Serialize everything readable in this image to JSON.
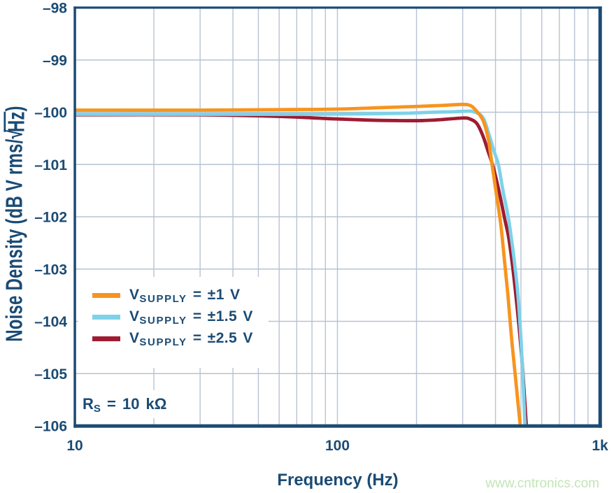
{
  "watermark": {
    "text": "www.cntronics.com"
  },
  "colors": {
    "axis": "#1b4b74",
    "grid": "#b7c3d3",
    "plot_border": "#1b4b74",
    "watermark": "#c2e5b6"
  },
  "chart_data": {
    "type": "line",
    "title": "",
    "xlabel": "Frequency (Hz)",
    "ylabel": "Noise Density (dB V rms/√Hz)",
    "ylabel_parts": {
      "pre": "Noise Density (dB V rms/",
      "radical": "√",
      "root": "Hz",
      "post": ")"
    },
    "x_scale": "log",
    "xlim": [
      10,
      1000
    ],
    "ylim": [
      -106,
      -98
    ],
    "grid": true,
    "legend_position": "inside-left-middle",
    "x_ticks": [
      {
        "v": 10,
        "label": "10"
      },
      {
        "v": 100,
        "label": "100"
      },
      {
        "v": 1000,
        "label": "1k"
      }
    ],
    "y_ticks": [
      {
        "v": -98,
        "label": "–98"
      },
      {
        "v": -99,
        "label": "–99"
      },
      {
        "v": -100,
        "label": "–100"
      },
      {
        "v": -101,
        "label": "–101"
      },
      {
        "v": -102,
        "label": "–102"
      },
      {
        "v": -103,
        "label": "–103"
      },
      {
        "v": -104,
        "label": "–104"
      },
      {
        "v": -105,
        "label": "–105"
      },
      {
        "v": -106,
        "label": "–106"
      }
    ],
    "x_gridlines": [
      20,
      30,
      40,
      50,
      60,
      70,
      80,
      90,
      100,
      200,
      300,
      400,
      500,
      600,
      700,
      800,
      900
    ],
    "y_gridlines": [
      -99,
      -100,
      -101,
      -102,
      -103,
      -104,
      -105
    ],
    "annotation": {
      "main": "R",
      "sub": "S",
      "rest": " = 10 kΩ"
    },
    "series": [
      {
        "name": "VSUPPLY = ±1 V",
        "label_parts": {
          "main": "V",
          "sub": "SUPPLY",
          "rest": " = ±1 V"
        },
        "color": "#f7941e",
        "points": [
          [
            10,
            -99.96
          ],
          [
            30,
            -99.96
          ],
          [
            60,
            -99.95
          ],
          [
            100,
            -99.94
          ],
          [
            150,
            -99.91
          ],
          [
            200,
            -99.89
          ],
          [
            250,
            -99.87
          ],
          [
            300,
            -99.85
          ],
          [
            320,
            -99.87
          ],
          [
            335,
            -99.95
          ],
          [
            358,
            -100.15
          ],
          [
            375,
            -100.5
          ],
          [
            388,
            -101.0
          ],
          [
            404,
            -101.6
          ],
          [
            419,
            -102.15
          ],
          [
            432,
            -102.8
          ],
          [
            446,
            -103.5
          ],
          [
            460,
            -104.3
          ],
          [
            476,
            -105.05
          ],
          [
            488,
            -105.6
          ],
          [
            499,
            -106.1
          ],
          [
            504,
            -106.5
          ]
        ]
      },
      {
        "name": "VSUPPLY = ±1.5 V",
        "label_parts": {
          "main": "V",
          "sub": "SUPPLY",
          "rest": " = ±1.5 V"
        },
        "color": "#7dd2e8",
        "points": [
          [
            10,
            -100.04
          ],
          [
            40,
            -100.04
          ],
          [
            80,
            -100.04
          ],
          [
            130,
            -100.03
          ],
          [
            180,
            -100.02
          ],
          [
            230,
            -100.0
          ],
          [
            280,
            -99.99
          ],
          [
            310,
            -99.98
          ],
          [
            330,
            -99.99
          ],
          [
            358,
            -100.1
          ],
          [
            379,
            -100.45
          ],
          [
            395,
            -100.75
          ],
          [
            410,
            -101.0
          ],
          [
            427,
            -101.5
          ],
          [
            447,
            -102.0
          ],
          [
            465,
            -102.6
          ],
          [
            485,
            -103.4
          ],
          [
            498,
            -104.2
          ],
          [
            508,
            -105.0
          ],
          [
            515,
            -105.7
          ],
          [
            520,
            -106.2
          ],
          [
            523,
            -106.5
          ]
        ]
      },
      {
        "name": "VSUPPLY = ±2.5 V",
        "label_parts": {
          "main": "V",
          "sub": "SUPPLY",
          "rest": " = ±2.5 V"
        },
        "color": "#9e1b32",
        "points": [
          [
            10,
            -100.05
          ],
          [
            30,
            -100.05
          ],
          [
            60,
            -100.08
          ],
          [
            90,
            -100.12
          ],
          [
            130,
            -100.15
          ],
          [
            170,
            -100.16
          ],
          [
            210,
            -100.16
          ],
          [
            250,
            -100.14
          ],
          [
            300,
            -100.11
          ],
          [
            320,
            -100.13
          ],
          [
            340,
            -100.22
          ],
          [
            358,
            -100.45
          ],
          [
            375,
            -100.75
          ],
          [
            392,
            -101.05
          ],
          [
            414,
            -101.55
          ],
          [
            434,
            -102.05
          ],
          [
            449,
            -102.4
          ],
          [
            466,
            -103.0
          ],
          [
            485,
            -103.8
          ],
          [
            502,
            -104.6
          ],
          [
            512,
            -105.2
          ],
          [
            524,
            -106.0
          ],
          [
            530,
            -106.5
          ]
        ]
      }
    ]
  }
}
